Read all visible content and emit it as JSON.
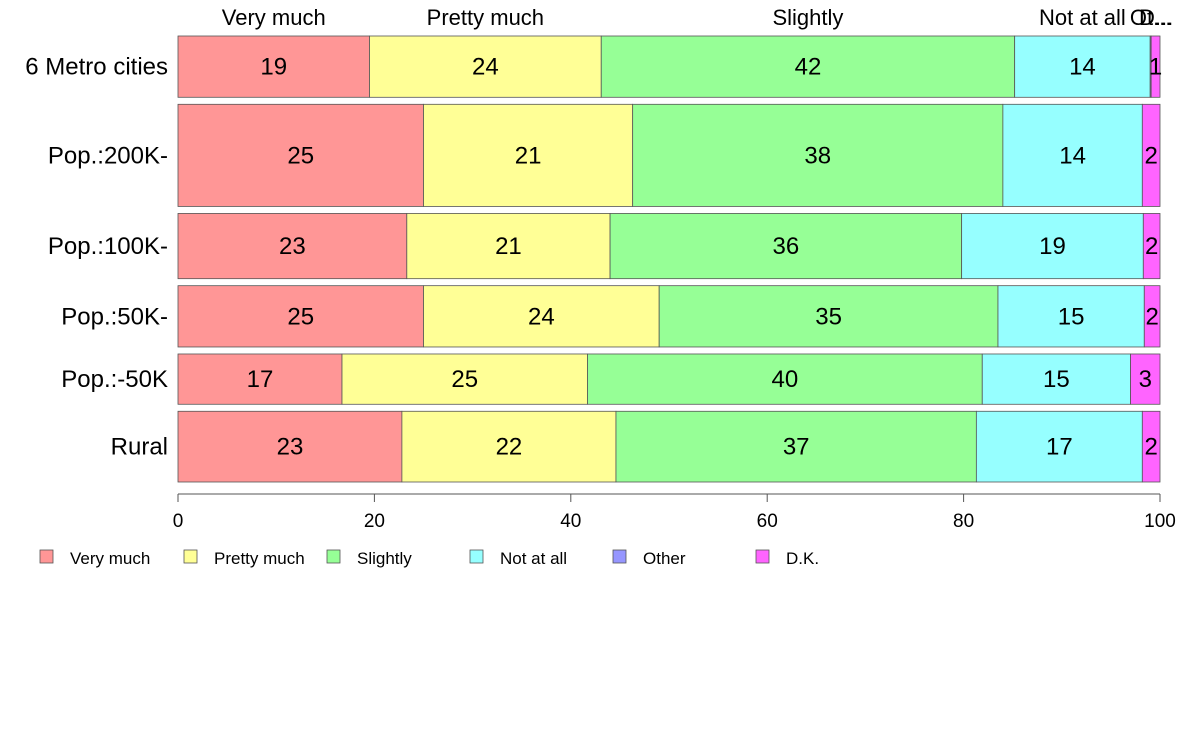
{
  "chart_data": {
    "type": "bar",
    "orientation": "horizontal",
    "stacked": true,
    "title": "",
    "xlabel": "",
    "ylabel": "",
    "xlim": [
      0,
      100
    ],
    "x_ticks": [
      "0",
      "20",
      "40",
      "60",
      "80",
      "100"
    ],
    "grid": false,
    "legend_position": "bottom",
    "categories": [
      "6 Metro cities",
      "Pop.:200K-",
      "Pop.:100K-",
      "Pop.:50K-",
      "Pop.:-50K",
      "Rural"
    ],
    "category_weights": [
      0.78,
      1.3,
      0.83,
      0.78,
      0.64,
      0.9
    ],
    "series": [
      {
        "name": "Very much",
        "color": "#ff9696",
        "values": [
          19.5,
          25.0,
          23.3,
          25.0,
          16.7,
          22.8
        ]
      },
      {
        "name": "Pretty much",
        "color": "#ffff96",
        "values": [
          23.6,
          21.3,
          20.7,
          24.0,
          25.0,
          21.8
        ]
      },
      {
        "name": "Slightly",
        "color": "#96ff96",
        "values": [
          42.1,
          37.7,
          35.8,
          34.5,
          40.2,
          36.7
        ]
      },
      {
        "name": "Not at all",
        "color": "#96ffff",
        "values": [
          13.8,
          14.2,
          18.5,
          14.9,
          15.1,
          16.9
        ]
      },
      {
        "name": "Other",
        "color": "#9696ff",
        "values": [
          0.1,
          0,
          0,
          0,
          0,
          0
        ]
      },
      {
        "name": "D.K.",
        "color": "#ff64ff",
        "values": [
          1.0,
          1.8,
          1.7,
          1.6,
          3.0,
          1.8
        ]
      }
    ],
    "data_labels": [
      [
        "19",
        "24",
        "42",
        "14",
        "",
        "1"
      ],
      [
        "25",
        "21",
        "38",
        "14",
        "",
        "2"
      ],
      [
        "23",
        "21",
        "36",
        "19",
        "",
        "2"
      ],
      [
        "25",
        "24",
        "35",
        "15",
        "",
        "2"
      ],
      [
        "17",
        "25",
        "40",
        "15",
        "",
        "3"
      ],
      [
        "23",
        "22",
        "37",
        "17",
        "",
        "2"
      ]
    ],
    "top_labels": [
      "Very much",
      "Pretty much",
      "Slightly",
      "Not at all",
      "Ot...",
      "D..."
    ],
    "legend": [
      "Very much",
      "Pretty much",
      "Slightly",
      "Not at all",
      "Other",
      "D.K."
    ]
  }
}
